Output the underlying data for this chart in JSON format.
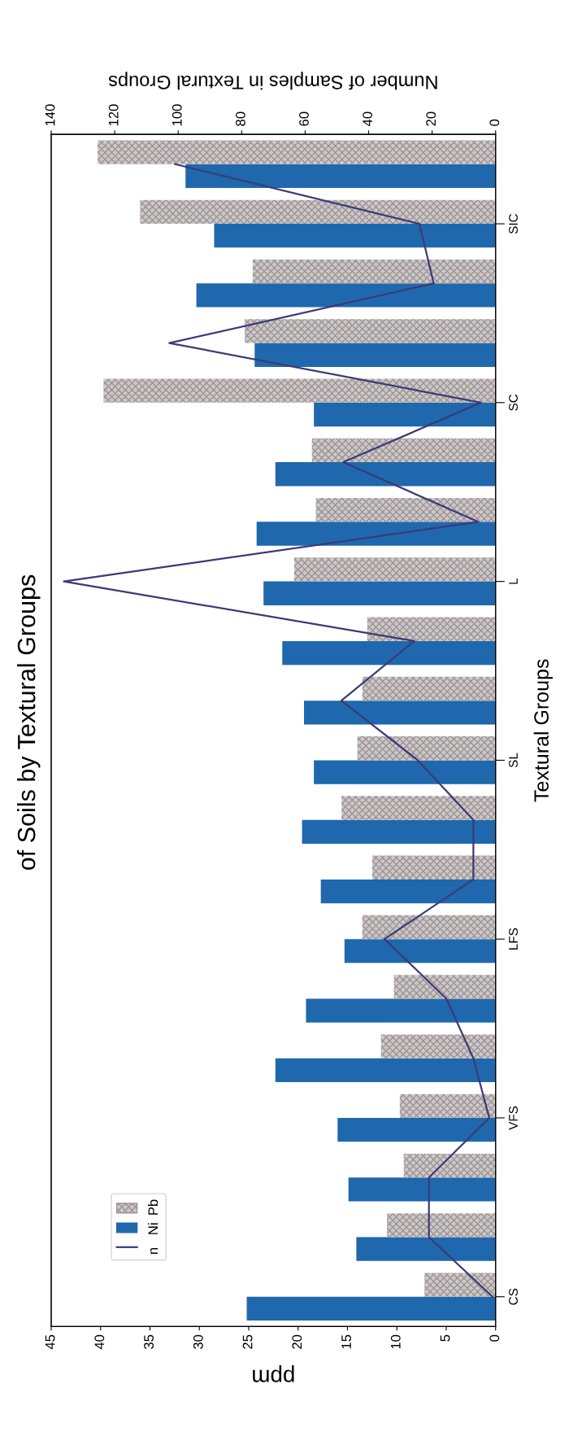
{
  "chart_data": {
    "type": "bar",
    "orientation": "horizontal",
    "title": "of Soils by Textural Groups",
    "xlabel": "ppm",
    "ylabel": "Textural Groups",
    "x2label": "Number of Samples in Textural Groups",
    "categories": [
      null,
      "SIC",
      null,
      null,
      "SC",
      null,
      null,
      "L",
      null,
      null,
      "SL",
      null,
      null,
      "LFS",
      null,
      null,
      "VFS",
      null,
      null,
      "CS"
    ],
    "series": [
      {
        "name": "n",
        "type": "line",
        "axis": "x2",
        "color": "#3b3a78",
        "values": [
          101,
          24,
          19.5,
          102.8,
          4.6,
          48,
          5.5,
          136,
          25.6,
          48.6,
          24.5,
          7,
          7,
          35,
          15.5,
          7,
          2,
          21,
          21,
          1
        ]
      },
      {
        "name": "Ni",
        "color": "#1f68ad",
        "values": [
          31.4,
          28.5,
          30.3,
          24.4,
          18.4,
          22.3,
          24.2,
          23.5,
          21.6,
          19.4,
          18.4,
          19.6,
          17.7,
          15.3,
          19.2,
          22.3,
          16.0,
          14.9,
          14.1,
          25.2
        ]
      },
      {
        "name": "Pb",
        "color": "#cfc7c7",
        "values": [
          40.3,
          36.0,
          24.6,
          25.4,
          39.7,
          18.6,
          18.2,
          20.4,
          13.0,
          13.5,
          14.0,
          15.6,
          12.5,
          13.5,
          10.3,
          11.6,
          9.7,
          9.3,
          11.0,
          7.2
        ]
      }
    ],
    "xlim": [
      45,
      0
    ],
    "xticks": [
      0,
      5,
      10,
      15,
      20,
      25,
      30,
      35,
      40,
      45
    ],
    "x2lim": [
      140,
      0
    ],
    "x2ticks": [
      0,
      20,
      40,
      60,
      80,
      100,
      120,
      140
    ],
    "legend": "bottom left",
    "grid": false
  }
}
